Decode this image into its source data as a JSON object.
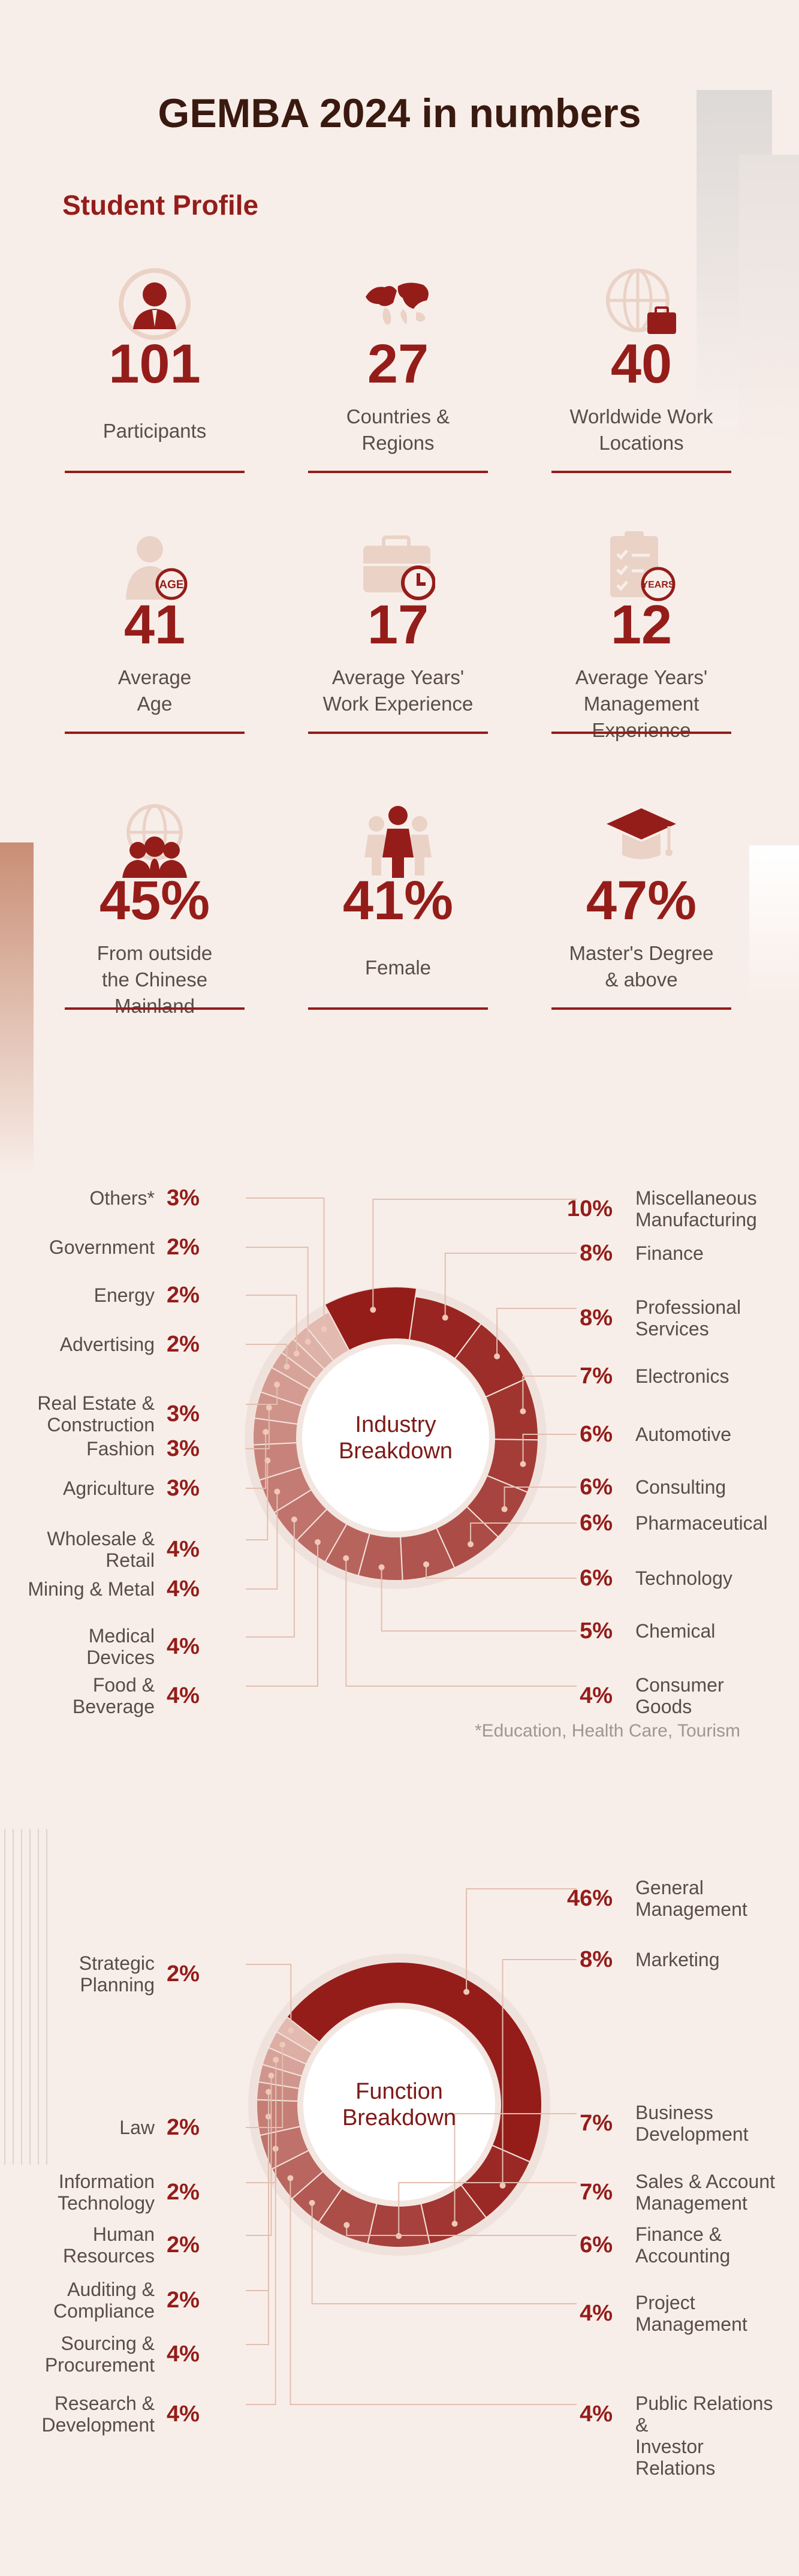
{
  "title": "GEMBA 2024 in numbers",
  "section": "Student Profile",
  "stats": [
    {
      "value": "101",
      "label": [
        "Participants"
      ],
      "icon": "person-icon"
    },
    {
      "value": "27",
      "label": [
        "Countries &",
        "Regions"
      ],
      "icon": "world-map-icon"
    },
    {
      "value": "40",
      "label": [
        "Worldwide Work",
        "Locations"
      ],
      "icon": "globe-briefcase-icon"
    },
    {
      "value": "41",
      "label": [
        "Average",
        "Age"
      ],
      "icon": "person-age-icon"
    },
    {
      "value": "17",
      "label": [
        "Average Years'",
        "Work Experience"
      ],
      "icon": "briefcase-clock-icon"
    },
    {
      "value": "12",
      "label": [
        "Average Years'",
        "Management Experience"
      ],
      "icon": "clipboard-years-icon"
    },
    {
      "value": "45%",
      "label": [
        "From outside",
        "the Chinese Mainland"
      ],
      "icon": "globe-people-icon"
    },
    {
      "value": "41%",
      "label": [
        "Female"
      ],
      "icon": "female-icon"
    },
    {
      "value": "47%",
      "label": [
        "Master's Degree",
        "& above"
      ],
      "icon": "graduation-cap-icon"
    }
  ],
  "badges": {
    "age": "AGE",
    "years": "YEARS"
  },
  "colors": {
    "accent": "#941d1a",
    "background": "#f8eee9",
    "light": "#ead2c6"
  },
  "footnote": "*Education, Health Care, Tourism",
  "chart_data": [
    {
      "type": "pie",
      "center_label": [
        "Industry",
        "Breakdown"
      ],
      "categories": [
        "Miscellaneous Manufacturing",
        "Finance",
        "Professional Services",
        "Electronics",
        "Automotive",
        "Consulting",
        "Pharmaceutical",
        "Technology",
        "Chemical",
        "Consumer Goods",
        "Food & Beverage",
        "Medical Devices",
        "Mining & Metal",
        "Wholesale & Retail",
        "Agriculture",
        "Fashion",
        "Real Estate & Construction",
        "Advertising",
        "Energy",
        "Government",
        "Others*"
      ],
      "values": [
        10,
        8,
        8,
        7,
        6,
        6,
        6,
        6,
        5,
        4,
        4,
        4,
        4,
        4,
        3,
        3,
        3,
        2,
        2,
        2,
        3
      ],
      "display": [
        "10%",
        "8%",
        "8%",
        "7%",
        "6%",
        "6%",
        "6%",
        "6%",
        "5%",
        "4%",
        "4%",
        "4%",
        "4%",
        "4%",
        "3%",
        "3%",
        "3%",
        "2%",
        "2%",
        "2%",
        "3%"
      ],
      "labels": [
        [
          "Miscellaneous",
          "Manufacturing"
        ],
        [
          "Finance"
        ],
        [
          "Professional",
          "Services"
        ],
        [
          "Electronics"
        ],
        [
          "Automotive"
        ],
        [
          "Consulting"
        ],
        [
          "Pharmaceutical"
        ],
        [
          "Technology"
        ],
        [
          "Chemical"
        ],
        [
          "Consumer",
          "Goods"
        ],
        [
          "Food &",
          "Beverage"
        ],
        [
          "Medical",
          "Devices"
        ],
        [
          "Mining & Metal"
        ],
        [
          "Wholesale &",
          "Retail"
        ],
        [
          "Agriculture"
        ],
        [
          "Fashion"
        ],
        [
          "Real Estate &",
          "Construction"
        ],
        [
          "Advertising"
        ],
        [
          "Energy"
        ],
        [
          "Government"
        ],
        [
          "Others*"
        ]
      ]
    },
    {
      "type": "pie",
      "center_label": [
        "Function",
        "Breakdown"
      ],
      "categories": [
        "General Management",
        "Marketing",
        "Business Development",
        "Sales & Account Management",
        "Finance & Accounting",
        "Project Management",
        "Public Relations & Investor Relations",
        "Research & Development",
        "Sourcing & Procurement",
        "Auditing & Compliance",
        "Human Resources",
        "Information Technology",
        "Law",
        "Strategic Planning"
      ],
      "values": [
        46,
        8,
        7,
        7,
        6,
        4,
        4,
        4,
        4,
        2,
        2,
        2,
        2,
        2
      ],
      "display": [
        "46%",
        "8%",
        "7%",
        "7%",
        "6%",
        "4%",
        "4%",
        "4%",
        "4%",
        "2%",
        "2%",
        "2%",
        "2%",
        "2%"
      ],
      "labels": [
        [
          "General",
          "Management"
        ],
        [
          "Marketing"
        ],
        [
          "Business",
          "Development"
        ],
        [
          "Sales & Account",
          "Management"
        ],
        [
          "Finance &",
          "Accounting"
        ],
        [
          "Project",
          "Management"
        ],
        [
          "Public Relations &",
          "Investor Relations"
        ],
        [
          "Research &",
          "Development"
        ],
        [
          "Sourcing &",
          "Procurement"
        ],
        [
          "Auditing &",
          "Compliance"
        ],
        [
          "Human",
          "Resources"
        ],
        [
          "Information",
          "Technology"
        ],
        [
          "Law"
        ],
        [
          "Strategic",
          "Planning"
        ]
      ]
    }
  ]
}
